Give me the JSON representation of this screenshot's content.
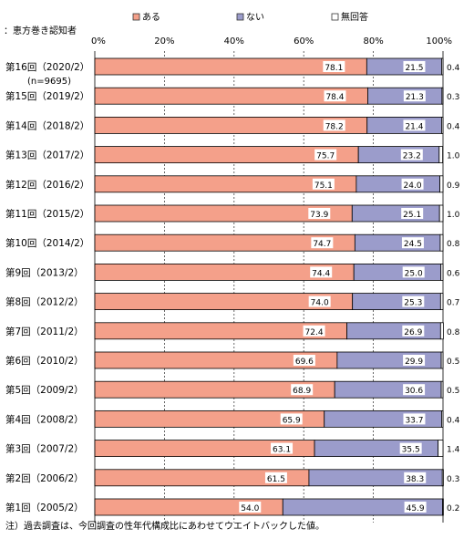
{
  "chart_data": {
    "type": "bar",
    "stacked": true,
    "orientation": "horizontal",
    "subtitle": "：恵方巻き認知者",
    "footnote": "注）過去調査は、今回調査の性年代構成比にあわせてウエイトバックした値。",
    "xlim": [
      0,
      100
    ],
    "tick_labels": [
      "0%",
      "20%",
      "40%",
      "60%",
      "80%",
      "100%"
    ],
    "legend_position": "top",
    "grid": true,
    "categories": [
      "第16回（2020/2）",
      "第15回（2019/2）",
      "第14回（2018/2）",
      "第13回（2017/2）",
      "第12回（2016/2）",
      "第11回（2015/2）",
      "第10回（2014/2）",
      "第9回（2013/2）",
      "第8回（2012/2）",
      "第7回（2011/2）",
      "第6回（2010/2）",
      "第5回（2009/2）",
      "第4回（2008/2）",
      "第3回（2007/2）",
      "第2回（2006/2）",
      "第1回（2005/2）"
    ],
    "category_sublabels": [
      "(n=9695)"
    ],
    "series": [
      {
        "name": "ある",
        "color": "#f4a08a",
        "values": [
          78.1,
          78.4,
          78.2,
          75.7,
          75.1,
          73.9,
          74.7,
          74.4,
          74.0,
          72.4,
          69.6,
          68.9,
          65.9,
          63.1,
          61.5,
          54.0
        ],
        "labels": [
          "78.1",
          "78.4",
          "78.2",
          "75.7",
          "75.1",
          "73.9",
          "74.7",
          "74.4",
          "74.0",
          "72.4",
          "69.6",
          "68.9",
          "65.9",
          "63.1",
          "61.5",
          "54.0"
        ]
      },
      {
        "name": "ない",
        "color": "#9b9ccb",
        "values": [
          21.5,
          21.3,
          21.4,
          23.2,
          24.0,
          25.1,
          24.5,
          25.0,
          25.3,
          26.9,
          29.9,
          30.6,
          33.7,
          35.5,
          38.3,
          45.9
        ],
        "labels": [
          "21.5",
          "21.3",
          "21.4",
          "23.2",
          "24.0",
          "25.1",
          "24.5",
          "25.0",
          "25.3",
          "26.9",
          "29.9",
          "30.6",
          "33.7",
          "35.5",
          "38.3",
          "45.9"
        ]
      },
      {
        "name": "無回答",
        "color": "#ffffff",
        "values": [
          0.4,
          0.3,
          0.4,
          1.0,
          0.9,
          1.0,
          0.8,
          0.6,
          0.7,
          0.8,
          0.5,
          0.5,
          0.4,
          1.4,
          0.3,
          0.2
        ],
        "labels": [
          "0.4",
          "0.3",
          "0.4",
          "1.0",
          "0.9",
          "1.0",
          "0.8",
          "0.6",
          "0.7",
          "0.8",
          "0.5",
          "0.5",
          "0.4",
          "1.4",
          "0.3",
          "0.2"
        ]
      }
    ]
  }
}
